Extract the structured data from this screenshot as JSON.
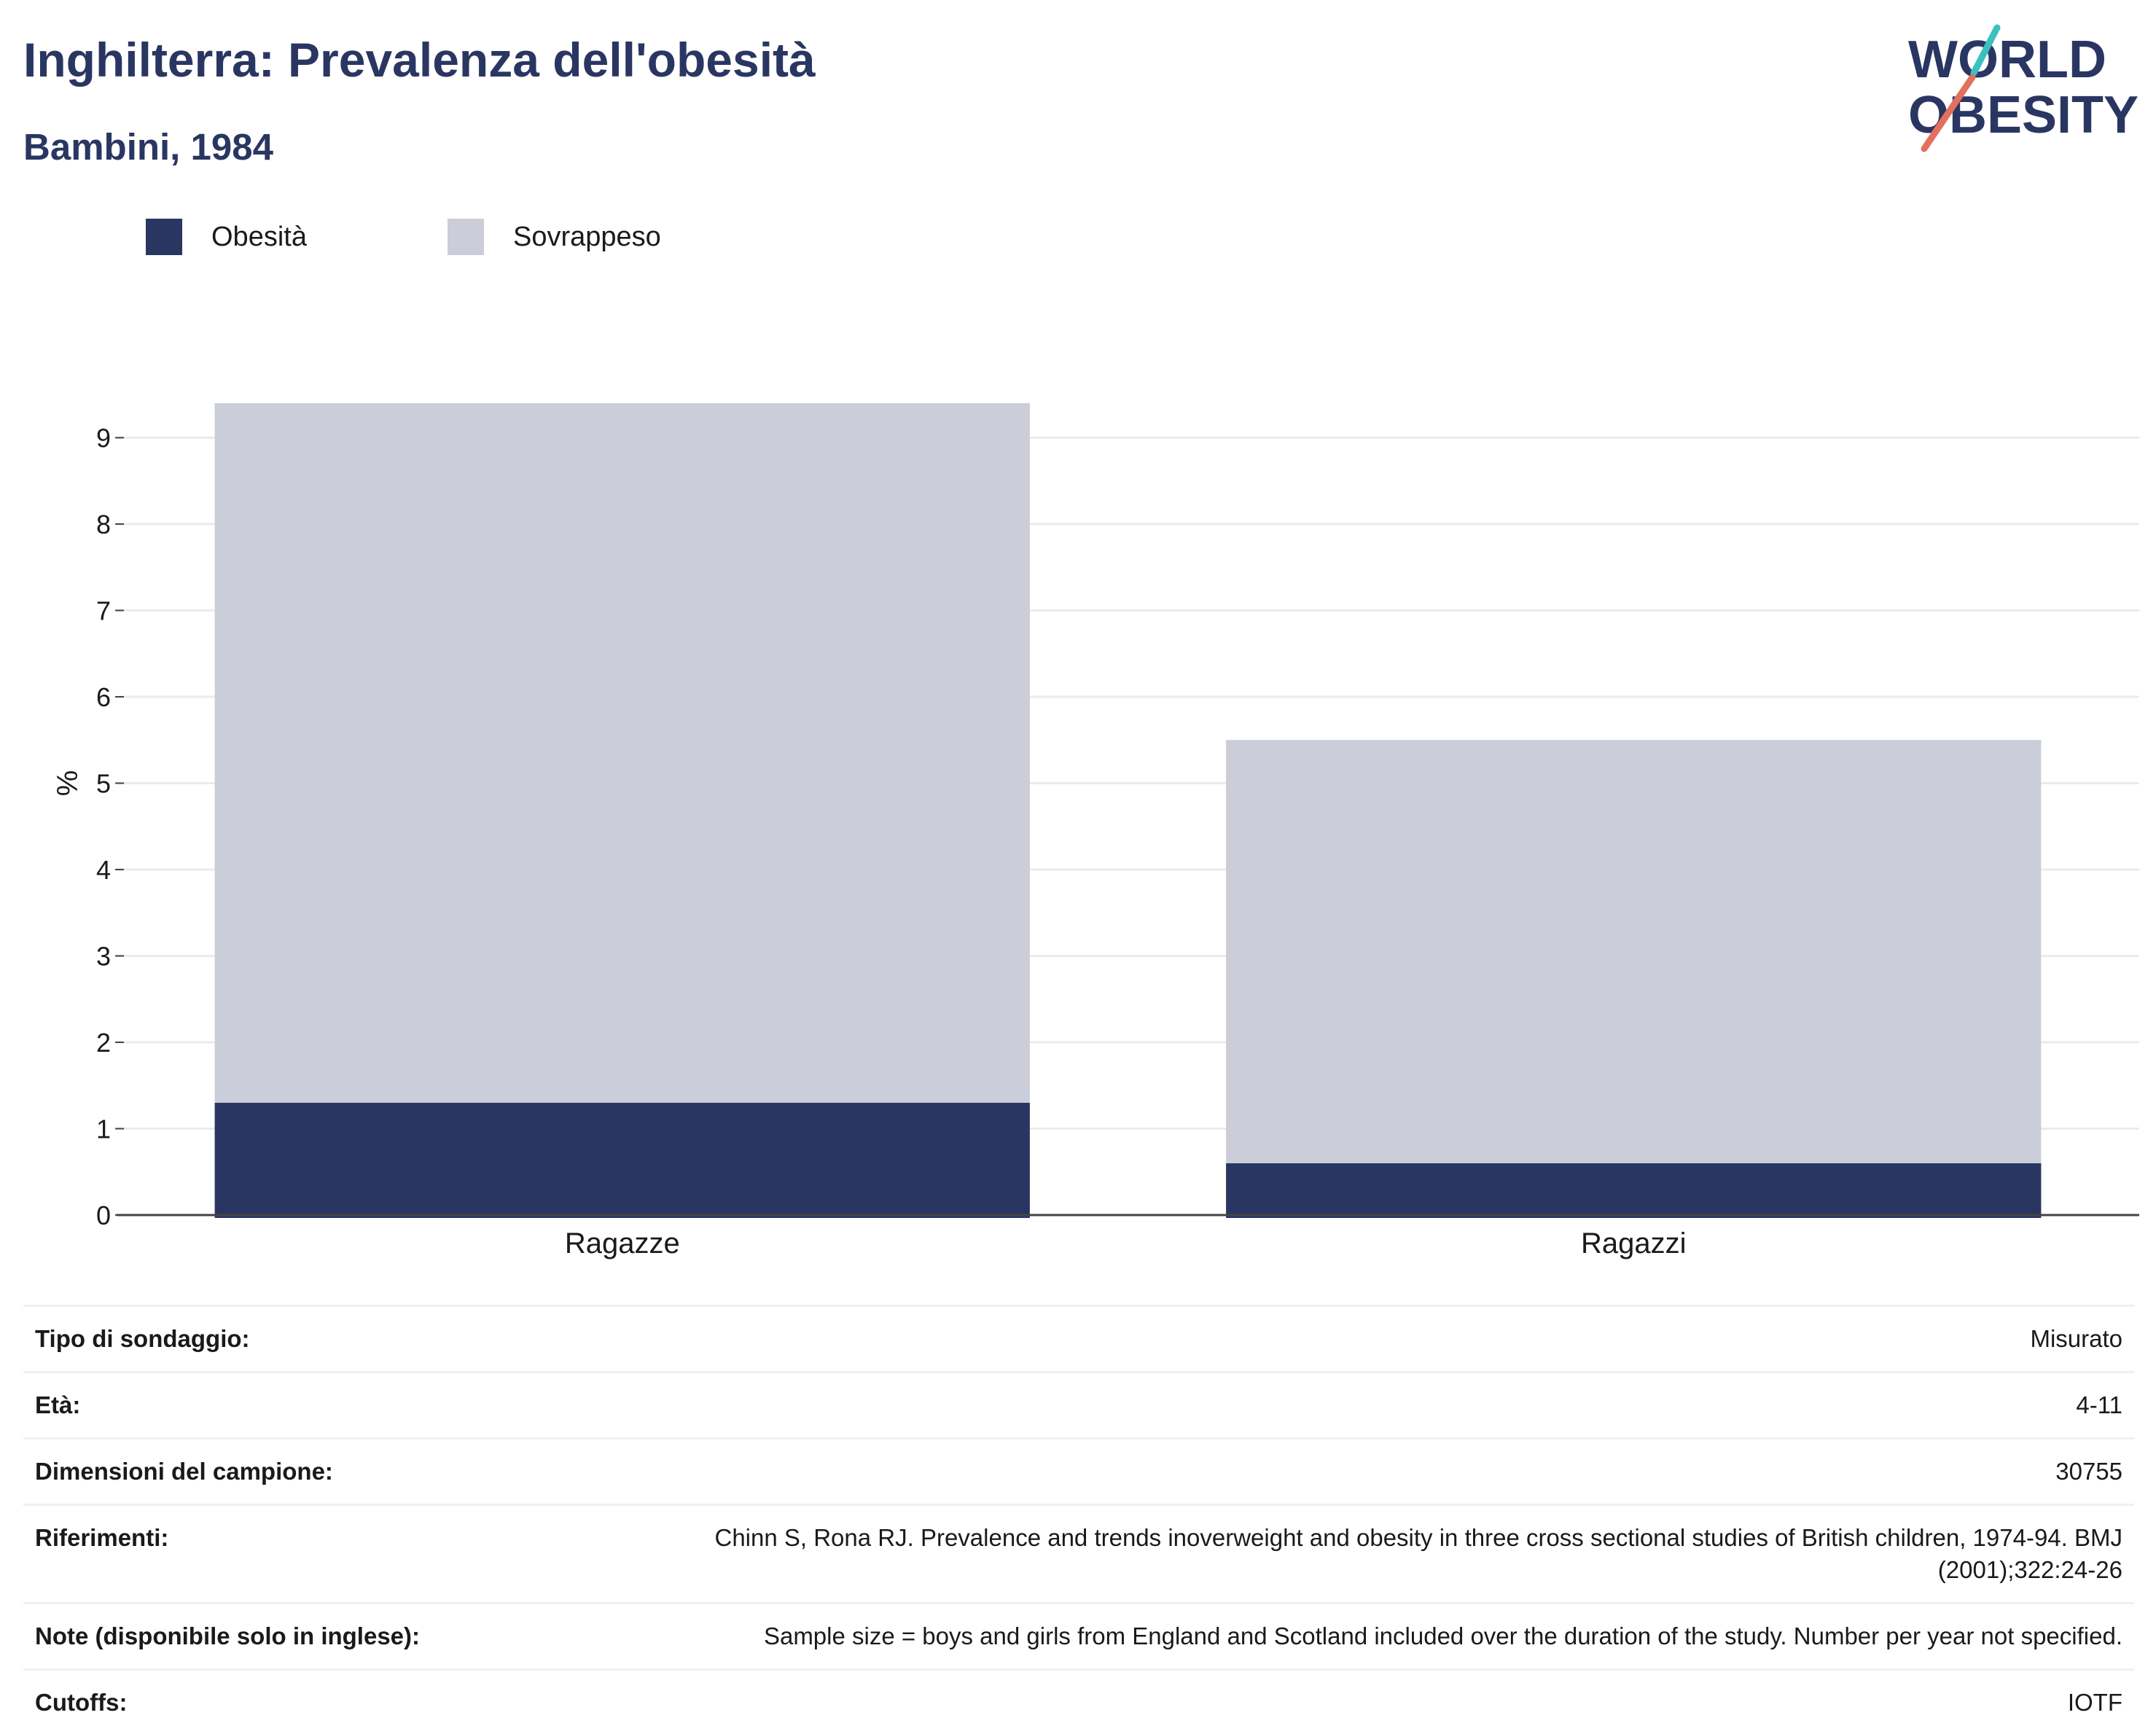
{
  "header": {
    "title": "Inghilterra: Prevalenza dell'obesità",
    "subtitle": "Bambini, 1984"
  },
  "logo": {
    "line1": "WORLD",
    "line2": "OBESITY"
  },
  "colors": {
    "obesity": "#2a3662",
    "overweight": "#cbcdd8",
    "accent_teal": "#3cbfbf",
    "accent_coral": "#e2705e"
  },
  "chart_data": {
    "type": "bar",
    "stacked": true,
    "categories": [
      "Ragazze",
      "Ragazzi"
    ],
    "series": [
      {
        "name": "Obesità",
        "values": [
          1.3,
          0.6
        ]
      },
      {
        "name": "Sovrappeso",
        "values": [
          8.1,
          4.9
        ]
      }
    ],
    "ylabel": "%",
    "ylim": [
      0,
      9.9
    ],
    "yticks": [
      0,
      1,
      2,
      3,
      4,
      5,
      6,
      7,
      8,
      9
    ],
    "grid": true,
    "legend_position": "top-left"
  },
  "meta": [
    {
      "label": "Tipo di sondaggio:",
      "value": "Misurato"
    },
    {
      "label": "Età:",
      "value": "4-11"
    },
    {
      "label": "Dimensioni del campione:",
      "value": "30755"
    },
    {
      "label": "Riferimenti:",
      "value": "Chinn S, Rona RJ. Prevalence and trends inoverweight and obesity in three cross sectional studies of British children, 1974-94. BMJ (2001);322:24-26"
    },
    {
      "label": "Note (disponibile solo in inglese):",
      "value": "Sample size = boys and girls from England and Scotland included over the duration of the study. Number per year not specified."
    },
    {
      "label": "Cutoffs:",
      "value": "IOTF"
    }
  ]
}
